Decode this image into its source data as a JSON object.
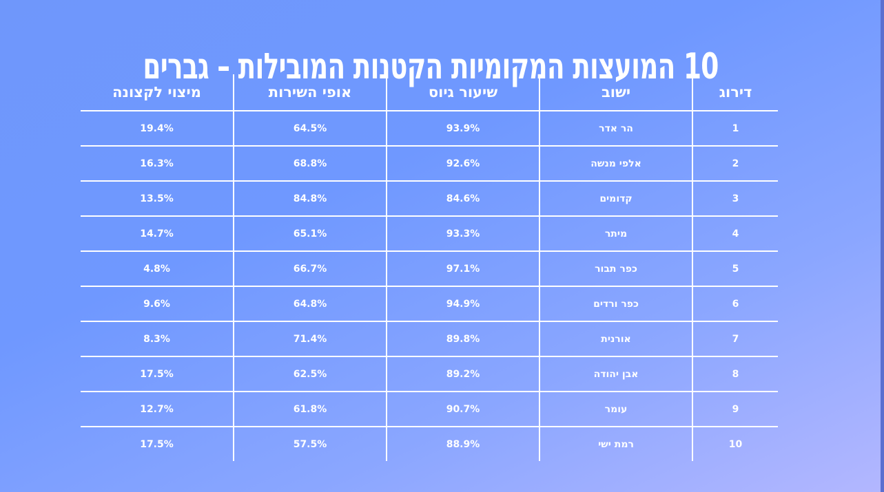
{
  "title": "10 המועצות המקומיות הקטנות המובילות – גברים",
  "table": {
    "headers": [
      "דירוג",
      "ישוב",
      "שיעור גיוס",
      "אופי השירות",
      "מיצוי לקצונה"
    ],
    "rows": [
      {
        "rank": "1",
        "settlement": "הר אדר",
        "recruitment": "93.9%",
        "service": "64.5%",
        "officer": "19.4%"
      },
      {
        "rank": "2",
        "settlement": "אלפי מנשה",
        "recruitment": "92.6%",
        "service": "68.8%",
        "officer": "16.3%"
      },
      {
        "rank": "3",
        "settlement": "קדומים",
        "recruitment": "84.6%",
        "service": "84.8%",
        "officer": "13.5%"
      },
      {
        "rank": "4",
        "settlement": "מיתר",
        "recruitment": "93.3%",
        "service": "65.1%",
        "officer": "14.7%"
      },
      {
        "rank": "5",
        "settlement": "כפר תבור",
        "recruitment": "97.1%",
        "service": "66.7%",
        "officer": "4.8%"
      },
      {
        "rank": "6",
        "settlement": "כפר ורדים",
        "recruitment": "94.9%",
        "service": "64.8%",
        "officer": "9.6%"
      },
      {
        "rank": "7",
        "settlement": "אורנית",
        "recruitment": "89.8%",
        "service": "71.4%",
        "officer": "8.3%"
      },
      {
        "rank": "8",
        "settlement": "אבן יהודה",
        "recruitment": "89.2%",
        "service": "62.5%",
        "officer": "17.5%"
      },
      {
        "rank": "9",
        "settlement": "עומר",
        "recruitment": "90.7%",
        "service": "61.8%",
        "officer": "12.7%"
      },
      {
        "rank": "10",
        "settlement": "רמת ישי",
        "recruitment": "88.9%",
        "service": "57.5%",
        "officer": "17.5%"
      }
    ]
  },
  "colors": {
    "background_top": "#6f97fb",
    "background_bottom_right": "#b3b7ff",
    "text": "#ffffff",
    "grid_lines": "#ffffff"
  }
}
